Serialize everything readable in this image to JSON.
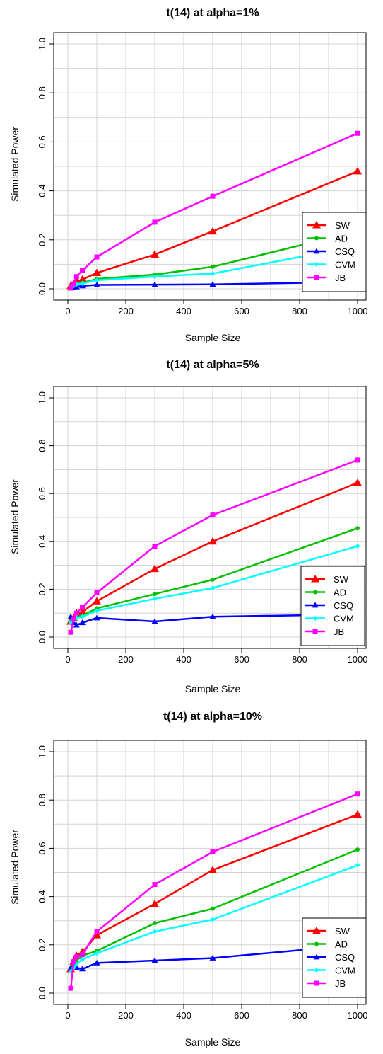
{
  "chart_data": [
    {
      "type": "line",
      "title": "t(14) at alpha=1%",
      "xlabel": "Sample Size",
      "ylabel": "Simulated Power",
      "xlim": [
        0,
        1000
      ],
      "ylim": [
        0,
        1
      ],
      "xticks": [
        "0",
        "200",
        "400",
        "600",
        "800",
        "1000"
      ],
      "yticks": [
        "0.0",
        "0.2",
        "0.4",
        "0.6",
        "0.8",
        "1.0"
      ],
      "grid": true,
      "legend": "right",
      "x": [
        10,
        20,
        30,
        50,
        100,
        300,
        500,
        1000
      ],
      "series": [
        {
          "name": "SW",
          "color": "#ff0000",
          "marker": "triangle-large",
          "values": [
            0.012,
            0.02,
            0.03,
            0.038,
            0.065,
            0.14,
            0.235,
            0.48
          ]
        },
        {
          "name": "AD",
          "color": "#00c000",
          "marker": "circle",
          "values": [
            0.01,
            0.015,
            0.02,
            0.025,
            0.04,
            0.058,
            0.09,
            0.235
          ]
        },
        {
          "name": "CSQ",
          "color": "#0000ff",
          "marker": "triangle",
          "values": [
            0.003,
            0.005,
            0.008,
            0.012,
            0.016,
            0.017,
            0.018,
            0.028
          ]
        },
        {
          "name": "CVM",
          "color": "#00ffff",
          "marker": "diamond",
          "values": [
            0.008,
            0.012,
            0.018,
            0.022,
            0.035,
            0.05,
            0.062,
            0.175
          ]
        },
        {
          "name": "JB",
          "color": "#ff00ff",
          "marker": "square",
          "values": [
            0.003,
            0.02,
            0.05,
            0.075,
            0.13,
            0.272,
            0.378,
            0.635
          ]
        }
      ]
    },
    {
      "type": "line",
      "title": "t(14) at alpha=5%",
      "xlabel": "Sample Size",
      "ylabel": "Simulated Power",
      "xlim": [
        0,
        1000
      ],
      "ylim": [
        0,
        1
      ],
      "xticks": [
        "0",
        "200",
        "400",
        "600",
        "800",
        "1000"
      ],
      "yticks": [
        "0.0",
        "0.2",
        "0.4",
        "0.6",
        "0.8",
        "1.0"
      ],
      "grid": true,
      "legend": "right",
      "x": [
        10,
        20,
        30,
        50,
        100,
        300,
        500,
        1000
      ],
      "series": [
        {
          "name": "SW",
          "color": "#ff0000",
          "marker": "triangle-large",
          "values": [
            0.065,
            0.08,
            0.1,
            0.105,
            0.15,
            0.285,
            0.4,
            0.645
          ]
        },
        {
          "name": "AD",
          "color": "#00c000",
          "marker": "circle",
          "values": [
            0.065,
            0.075,
            0.085,
            0.09,
            0.12,
            0.18,
            0.24,
            0.455
          ]
        },
        {
          "name": "CSQ",
          "color": "#0000ff",
          "marker": "triangle",
          "values": [
            0.085,
            0.06,
            0.05,
            0.06,
            0.08,
            0.065,
            0.085,
            0.095
          ]
        },
        {
          "name": "CVM",
          "color": "#00ffff",
          "marker": "diamond",
          "values": [
            0.06,
            0.07,
            0.08,
            0.085,
            0.11,
            0.16,
            0.205,
            0.38
          ]
        },
        {
          "name": "JB",
          "color": "#ff00ff",
          "marker": "square",
          "values": [
            0.02,
            0.075,
            0.1,
            0.125,
            0.185,
            0.38,
            0.51,
            0.74
          ]
        }
      ]
    },
    {
      "type": "line",
      "title": "t(14) at alpha=10%",
      "xlabel": "Sample Size",
      "ylabel": "Simulated Power",
      "xlim": [
        0,
        1000
      ],
      "ylim": [
        0,
        1
      ],
      "xticks": [
        "0",
        "200",
        "400",
        "600",
        "800",
        "1000"
      ],
      "yticks": [
        "0.0",
        "0.2",
        "0.4",
        "0.6",
        "0.8",
        "1.0"
      ],
      "grid": true,
      "legend": "right",
      "x": [
        10,
        20,
        30,
        50,
        100,
        300,
        500,
        1000
      ],
      "series": [
        {
          "name": "SW",
          "color": "#ff0000",
          "marker": "triangle-large",
          "values": [
            0.1,
            0.13,
            0.155,
            0.17,
            0.24,
            0.37,
            0.51,
            0.74
          ]
        },
        {
          "name": "AD",
          "color": "#00c000",
          "marker": "circle",
          "values": [
            0.1,
            0.12,
            0.135,
            0.155,
            0.175,
            0.29,
            0.35,
            0.595
          ]
        },
        {
          "name": "CSQ",
          "color": "#0000ff",
          "marker": "triangle",
          "values": [
            0.105,
            0.11,
            0.105,
            0.1,
            0.125,
            0.135,
            0.145,
            0.2
          ]
        },
        {
          "name": "CVM",
          "color": "#00ffff",
          "marker": "diamond",
          "values": [
            0.09,
            0.105,
            0.12,
            0.14,
            0.165,
            0.255,
            0.305,
            0.53
          ]
        },
        {
          "name": "JB",
          "color": "#ff00ff",
          "marker": "square",
          "values": [
            0.02,
            0.13,
            0.15,
            0.16,
            0.255,
            0.45,
            0.585,
            0.825
          ]
        }
      ]
    }
  ]
}
